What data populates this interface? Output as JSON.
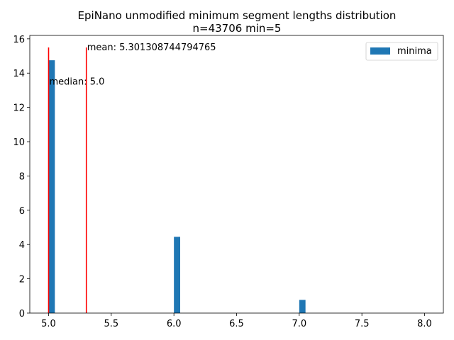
{
  "chart_data": {
    "type": "bar",
    "title": "EpiNano unmodified minimum segment lengths distribution",
    "subtitle": "n=43706 min=5",
    "xlabel": "",
    "ylabel": "",
    "xlim": [
      4.85,
      8.15
    ],
    "ylim": [
      0,
      16.2
    ],
    "x_ticks": [
      5.0,
      5.5,
      6.0,
      6.5,
      7.0,
      7.5,
      8.0
    ],
    "x_tick_labels": [
      "5.0",
      "5.5",
      "6.0",
      "6.5",
      "7.0",
      "7.5",
      "8.0"
    ],
    "y_ticks": [
      0,
      2,
      4,
      6,
      8,
      10,
      12,
      14,
      16
    ],
    "y_tick_labels": [
      "0",
      "2",
      "4",
      "6",
      "8",
      "10",
      "12",
      "14",
      "16"
    ],
    "bin_width": 0.05,
    "series": [
      {
        "name": "minima",
        "color": "#1f77b4",
        "bars": [
          {
            "x": 5.0,
            "value": 14.75
          },
          {
            "x": 6.0,
            "value": 4.45
          },
          {
            "x": 7.0,
            "value": 0.77
          }
        ]
      }
    ],
    "vlines": [
      {
        "x": 5.0,
        "y_top": 15.5,
        "color": "#ff0000",
        "label": "median: 5.0",
        "label_y": 13.5
      },
      {
        "x": 5.301308744794765,
        "y_top": 15.5,
        "color": "#ff0000",
        "label": "mean: 5.301308744794765",
        "label_y": 15.5
      }
    ],
    "legend": {
      "position": "top-right",
      "entries": [
        "minima"
      ]
    },
    "grid": false
  }
}
